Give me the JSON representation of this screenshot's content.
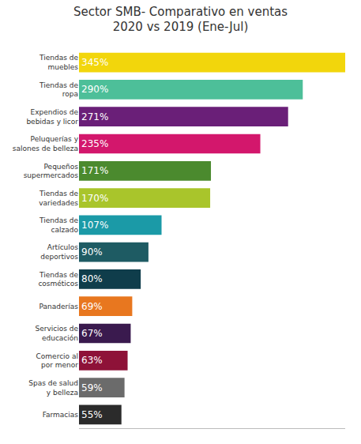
{
  "chart_data": {
    "type": "bar",
    "title": "Sector SMB- Comparativo en ventas\n2020 vs 2019 (Ene-Jul)",
    "orientation": "horizontal",
    "categories": [
      "Tiendas de\nmuebles",
      "Tiendas de\nropa",
      "Expendios de\nbebidas y licor",
      "Peluquerías y\nsalones de belleza",
      "Pequeños\nsupermercados",
      "Tiendas de\nvariedades",
      "Tiendas de\ncalzado",
      "Artículos\ndeportivos",
      "Tiendas de\ncosméticos",
      "Panaderías",
      "Servicios de\neducación",
      "Comercio al\npor menor",
      "Spas de salud\ny belleza",
      "Farmacias"
    ],
    "values": [
      345,
      290,
      271,
      235,
      171,
      170,
      107,
      90,
      80,
      69,
      67,
      63,
      59,
      55
    ],
    "value_labels": [
      "345%",
      "290%",
      "271%",
      "235%",
      "171%",
      "170%",
      "107%",
      "90%",
      "80%",
      "69%",
      "67%",
      "63%",
      "59%",
      "55%"
    ],
    "colors": [
      "#f2d60c",
      "#4dbf99",
      "#6a1f78",
      "#d3176c",
      "#4b8a2e",
      "#a9c52b",
      "#1b9aa7",
      "#1e5b63",
      "#0f3d4b",
      "#e8771f",
      "#3a1a4e",
      "#8e1238",
      "#6b6b6b",
      "#2b2b2b"
    ],
    "data_labels": true,
    "xlim": [
      0,
      345
    ],
    "tick_labels": "y",
    "grid": false
  }
}
